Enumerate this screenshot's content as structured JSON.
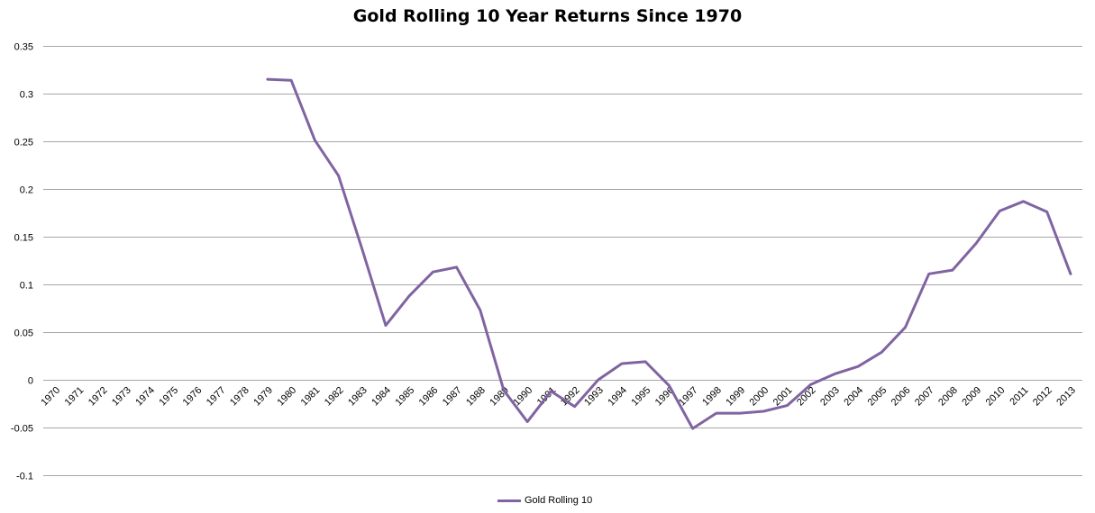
{
  "chart_data": {
    "type": "line",
    "title": "Gold Rolling 10 Year Returns Since 1970",
    "xlabel": "",
    "ylabel": "",
    "ylim": [
      -0.1,
      0.35
    ],
    "yticks": [
      "0.35",
      "0.3",
      "0.25",
      "0.2",
      "0.15",
      "0.1",
      "0.05",
      "0",
      "-0.05",
      "-0.1"
    ],
    "ytick_values": [
      0.35,
      0.3,
      0.25,
      0.2,
      0.15,
      0.1,
      0.05,
      0,
      -0.05,
      -0.1
    ],
    "categories": [
      "1970",
      "1971",
      "1972",
      "1973",
      "1974",
      "1975",
      "1976",
      "1977",
      "1978",
      "1979",
      "1980",
      "1981",
      "1982",
      "1983",
      "1984",
      "1985",
      "1986",
      "1987",
      "1988",
      "1989",
      "1990",
      "1991",
      "1992",
      "1993",
      "1994",
      "1995",
      "1996",
      "1997",
      "1998",
      "1999",
      "2000",
      "2001",
      "2002",
      "2003",
      "2004",
      "2005",
      "2006",
      "2007",
      "2008",
      "2009",
      "2010",
      "2011",
      "2012",
      "2013"
    ],
    "grid": true,
    "legend_position": "bottom",
    "series": [
      {
        "name": "Gold Rolling 10",
        "color": "#8064a2",
        "values": [
          null,
          null,
          null,
          null,
          null,
          null,
          null,
          null,
          null,
          0.315,
          0.314,
          0.251,
          0.214,
          0.137,
          0.057,
          0.088,
          0.113,
          0.118,
          0.073,
          -0.011,
          -0.044,
          -0.012,
          -0.028,
          0.0,
          0.017,
          0.019,
          -0.006,
          -0.051,
          -0.035,
          -0.035,
          -0.033,
          -0.027,
          -0.005,
          0.006,
          0.014,
          0.029,
          0.055,
          0.111,
          0.115,
          0.143,
          0.177,
          0.187,
          0.176,
          0.111
        ]
      }
    ]
  }
}
